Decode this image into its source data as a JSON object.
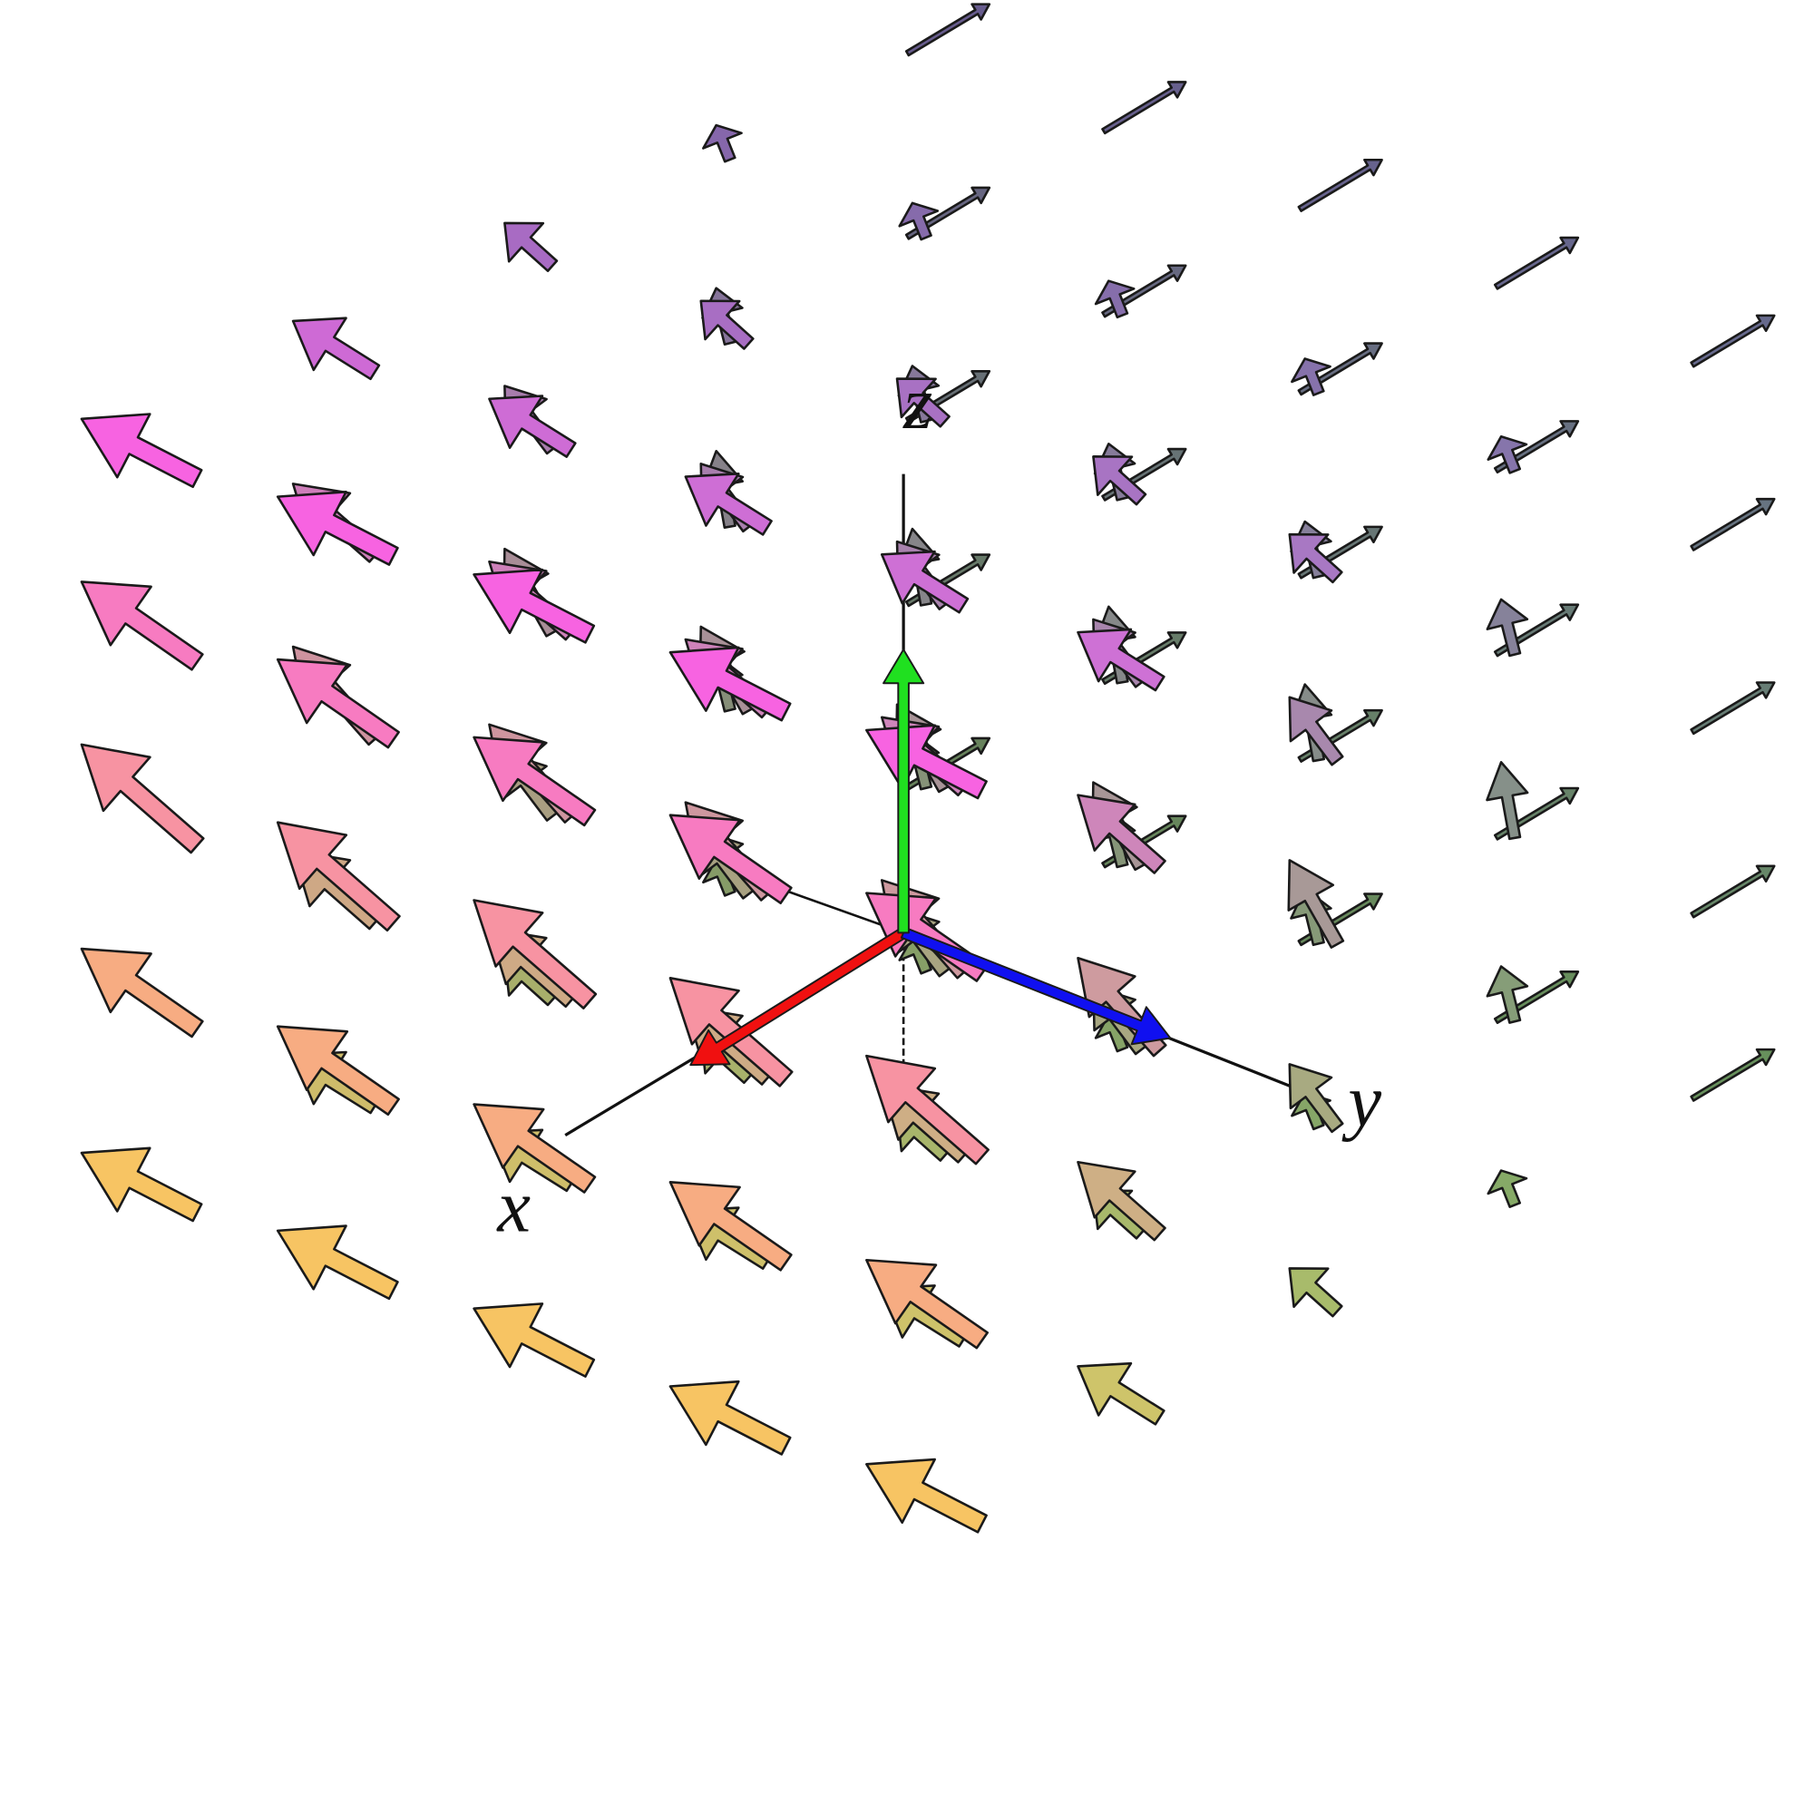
{
  "axes": {
    "x": "x",
    "y": "y",
    "z": "z"
  }
}
